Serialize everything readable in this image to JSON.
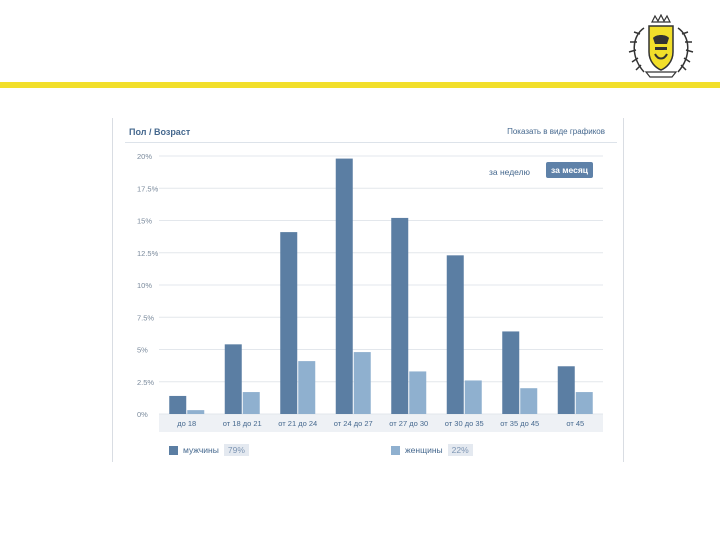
{
  "colors": {
    "brand_yellow": "#f2df2a",
    "men": "#5b7ea3",
    "women": "#8fb0cf",
    "link": "#45688e"
  },
  "panel": {
    "title": "Пол / Возраст",
    "link": "Показать в виде графиков",
    "period_week": "за неделю",
    "period_month": "за месяц"
  },
  "legend": {
    "men_label": "мужчины",
    "men_pct": "79%",
    "women_label": "женщины",
    "women_pct": "22%"
  },
  "logo": {
    "icon": "crest-logo-icon"
  },
  "chart_data": {
    "type": "bar",
    "categories": [
      "до 18",
      "от 18 до 21",
      "от 21 до 24",
      "от 24 до 27",
      "от 27 до 30",
      "от 30 до 35",
      "от 35 до 45",
      "от 45"
    ],
    "series": [
      {
        "name": "мужчины",
        "values": [
          1.4,
          5.4,
          14.1,
          19.8,
          15.2,
          12.3,
          6.4,
          3.7
        ]
      },
      {
        "name": "женщины",
        "values": [
          0.3,
          1.7,
          4.1,
          4.8,
          3.3,
          2.6,
          2.0,
          1.7
        ]
      }
    ],
    "yticks": [
      "0%",
      "2.5%",
      "5%",
      "7.5%",
      "10%",
      "12.5%",
      "15%",
      "17.5%",
      "20%"
    ],
    "ylim": [
      0,
      20
    ],
    "grid": true,
    "legend_position": "bottom"
  }
}
